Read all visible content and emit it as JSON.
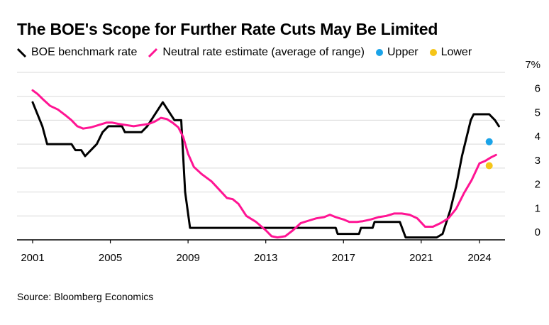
{
  "chart_data": {
    "type": "line",
    "title": "The BOE's Scope for Further Rate Cuts May Be Limited",
    "source": "Source: Bloomberg Economics",
    "xlabel": "",
    "ylabel": "",
    "xlim": [
      2000.9,
      2025.1
    ],
    "ylim": [
      0,
      7
    ],
    "y_ticks": [
      0,
      1,
      2,
      3,
      4,
      5,
      6,
      7
    ],
    "y_tick_labels": [
      "0",
      "1",
      "2",
      "3",
      "4",
      "5",
      "6",
      "7%"
    ],
    "x_ticks": [
      2001,
      2005,
      2009,
      2013,
      2017,
      2021,
      2024
    ],
    "x_tick_labels": [
      "2001",
      "2005",
      "2009",
      "2013",
      "2017",
      "2021",
      "2024"
    ],
    "grid": true,
    "legend_position": "top-left",
    "series": [
      {
        "name": "BOE benchmark rate",
        "color": "#000000",
        "kind": "line",
        "points": [
          [
            2001.0,
            5.75
          ],
          [
            2001.5,
            4.75
          ],
          [
            2001.75,
            4.0
          ],
          [
            2002.0,
            4.0
          ],
          [
            2003.0,
            4.0
          ],
          [
            2003.2,
            3.75
          ],
          [
            2003.5,
            3.75
          ],
          [
            2003.7,
            3.5
          ],
          [
            2004.3,
            4.0
          ],
          [
            2004.6,
            4.5
          ],
          [
            2004.9,
            4.75
          ],
          [
            2005.6,
            4.75
          ],
          [
            2005.75,
            4.5
          ],
          [
            2006.6,
            4.5
          ],
          [
            2006.9,
            4.75
          ],
          [
            2007.7,
            5.75
          ],
          [
            2008.3,
            5.0
          ],
          [
            2008.65,
            5.0
          ],
          [
            2008.85,
            2.0
          ],
          [
            2009.1,
            0.5
          ],
          [
            2016.0,
            0.5
          ],
          [
            2016.6,
            0.5
          ],
          [
            2016.7,
            0.25
          ],
          [
            2017.8,
            0.25
          ],
          [
            2017.9,
            0.5
          ],
          [
            2018.5,
            0.5
          ],
          [
            2018.6,
            0.75
          ],
          [
            2019.9,
            0.75
          ],
          [
            2020.2,
            0.1
          ],
          [
            2021.8,
            0.1
          ],
          [
            2022.1,
            0.25
          ],
          [
            2022.5,
            1.25
          ],
          [
            2022.8,
            2.25
          ],
          [
            2023.1,
            3.5
          ],
          [
            2023.55,
            5.0
          ],
          [
            2023.7,
            5.25
          ],
          [
            2024.5,
            5.25
          ],
          [
            2024.8,
            5.0
          ],
          [
            2025.0,
            4.75
          ]
        ]
      },
      {
        "name": "Neutral rate estimate (average of range)",
        "color": "#ff1493",
        "kind": "line",
        "points": [
          [
            2001.0,
            6.25
          ],
          [
            2001.25,
            6.1
          ],
          [
            2001.5,
            5.9
          ],
          [
            2001.9,
            5.6
          ],
          [
            2002.3,
            5.45
          ],
          [
            2002.7,
            5.2
          ],
          [
            2003.0,
            5.0
          ],
          [
            2003.3,
            4.75
          ],
          [
            2003.6,
            4.65
          ],
          [
            2004.0,
            4.7
          ],
          [
            2004.4,
            4.8
          ],
          [
            2004.8,
            4.9
          ],
          [
            2005.1,
            4.9
          ],
          [
            2005.4,
            4.85
          ],
          [
            2005.8,
            4.8
          ],
          [
            2006.2,
            4.75
          ],
          [
            2006.6,
            4.8
          ],
          [
            2007.0,
            4.85
          ],
          [
            2007.3,
            4.95
          ],
          [
            2007.6,
            5.1
          ],
          [
            2007.9,
            5.05
          ],
          [
            2008.2,
            4.9
          ],
          [
            2008.5,
            4.7
          ],
          [
            2008.75,
            4.3
          ],
          [
            2009.0,
            3.6
          ],
          [
            2009.3,
            3.05
          ],
          [
            2009.7,
            2.75
          ],
          [
            2010.2,
            2.45
          ],
          [
            2010.6,
            2.1
          ],
          [
            2011.0,
            1.75
          ],
          [
            2011.3,
            1.7
          ],
          [
            2011.6,
            1.5
          ],
          [
            2012.0,
            1.0
          ],
          [
            2012.5,
            0.75
          ],
          [
            2013.0,
            0.4
          ],
          [
            2013.3,
            0.15
          ],
          [
            2013.6,
            0.1
          ],
          [
            2014.0,
            0.15
          ],
          [
            2014.4,
            0.4
          ],
          [
            2014.8,
            0.7
          ],
          [
            2015.2,
            0.8
          ],
          [
            2015.6,
            0.9
          ],
          [
            2016.0,
            0.95
          ],
          [
            2016.3,
            1.05
          ],
          [
            2016.6,
            0.95
          ],
          [
            2017.0,
            0.85
          ],
          [
            2017.3,
            0.75
          ],
          [
            2017.7,
            0.75
          ],
          [
            2018.0,
            0.78
          ],
          [
            2018.4,
            0.85
          ],
          [
            2018.8,
            0.95
          ],
          [
            2019.2,
            1.0
          ],
          [
            2019.6,
            1.1
          ],
          [
            2020.0,
            1.1
          ],
          [
            2020.4,
            1.05
          ],
          [
            2020.8,
            0.9
          ],
          [
            2021.2,
            0.55
          ],
          [
            2021.6,
            0.55
          ],
          [
            2022.0,
            0.7
          ],
          [
            2022.4,
            0.9
          ],
          [
            2022.8,
            1.3
          ],
          [
            2023.2,
            1.95
          ],
          [
            2023.6,
            2.5
          ],
          [
            2024.0,
            3.2
          ],
          [
            2024.3,
            3.3
          ],
          [
            2024.6,
            3.45
          ],
          [
            2024.85,
            3.55
          ]
        ]
      },
      {
        "name": "Upper",
        "color": "#1aa3e8",
        "kind": "point",
        "points": [
          [
            2024.5,
            4.1
          ]
        ]
      },
      {
        "name": "Lower",
        "color": "#f5c518",
        "kind": "point",
        "points": [
          [
            2024.5,
            3.1
          ]
        ]
      }
    ]
  }
}
